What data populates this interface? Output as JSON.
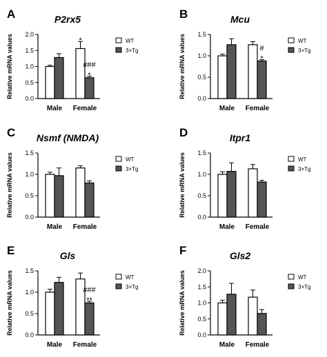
{
  "chart_data": [
    {
      "type": "bar",
      "panel_label": "A",
      "title": "P2rx5",
      "ylabel": "Relative mRNA values",
      "categories": [
        "Male",
        "Female"
      ],
      "ylim": [
        0,
        2.0
      ],
      "yticks": [
        "0.0",
        "0.5",
        "1.0",
        "1.5",
        "2.0"
      ],
      "series": [
        {
          "name": "WT",
          "values": [
            1.0,
            1.56
          ],
          "errors": [
            0.04,
            0.22
          ]
        },
        {
          "name": "3×Tg",
          "values": [
            1.28,
            0.65
          ],
          "errors": [
            0.12,
            0.05
          ]
        }
      ],
      "annotations": [
        {
          "category": 1,
          "series": 0,
          "lines": [
            "*"
          ]
        },
        {
          "category": 1,
          "series": 1,
          "lines": [
            "###",
            "*"
          ]
        }
      ]
    },
    {
      "type": "bar",
      "panel_label": "B",
      "title": "Mcu",
      "ylabel": "Relative mRNA values",
      "categories": [
        "Male",
        "Female"
      ],
      "ylim": [
        0,
        1.5
      ],
      "yticks": [
        "0.0",
        "0.5",
        "1.0",
        "1.5"
      ],
      "series": [
        {
          "name": "WT",
          "values": [
            1.0,
            1.26
          ],
          "errors": [
            0.04,
            0.07
          ]
        },
        {
          "name": "3×Tg",
          "values": [
            1.26,
            0.88
          ],
          "errors": [
            0.14,
            0.03
          ]
        }
      ],
      "annotations": [
        {
          "category": 1,
          "series": 1,
          "lines": [
            "#",
            "*"
          ]
        }
      ]
    },
    {
      "type": "bar",
      "panel_label": "C",
      "title": "Nsmf (NMDA)",
      "ylabel": "Relative mRNA values",
      "categories": [
        "Male",
        "Female"
      ],
      "ylim": [
        0,
        1.5
      ],
      "yticks": [
        "0.0",
        "0.5",
        "1.0",
        "1.5"
      ],
      "series": [
        {
          "name": "WT",
          "values": [
            1.0,
            1.15
          ],
          "errors": [
            0.05,
            0.05
          ]
        },
        {
          "name": "3×Tg",
          "values": [
            0.97,
            0.8
          ],
          "errors": [
            0.18,
            0.05
          ]
        }
      ],
      "annotations": []
    },
    {
      "type": "bar",
      "panel_label": "D",
      "title": "Itpr1",
      "ylabel": "Relative mRNA values",
      "categories": [
        "Male",
        "Female"
      ],
      "ylim": [
        0,
        1.5
      ],
      "yticks": [
        "0.0",
        "0.5",
        "1.0",
        "1.5"
      ],
      "series": [
        {
          "name": "WT",
          "values": [
            1.0,
            1.13
          ],
          "errors": [
            0.06,
            0.1
          ]
        },
        {
          "name": "3×Tg",
          "values": [
            1.07,
            0.82
          ],
          "errors": [
            0.2,
            0.04
          ]
        }
      ],
      "annotations": []
    },
    {
      "type": "bar",
      "panel_label": "E",
      "title": "Gls",
      "ylabel": "Relative mRNA values",
      "categories": [
        "Male",
        "Female"
      ],
      "ylim": [
        0,
        1.5
      ],
      "yticks": [
        "0.0",
        "0.5",
        "1.0",
        "1.5"
      ],
      "series": [
        {
          "name": "WT",
          "values": [
            1.0,
            1.31
          ],
          "errors": [
            0.07,
            0.14
          ]
        },
        {
          "name": "3×Tg",
          "values": [
            1.23,
            0.75
          ],
          "errors": [
            0.12,
            0.04
          ]
        }
      ],
      "annotations": [
        {
          "category": 1,
          "series": 1,
          "lines": [
            "###",
            "**"
          ]
        }
      ]
    },
    {
      "type": "bar",
      "panel_label": "F",
      "title": "Gls2",
      "ylabel": "Relative mRNA values",
      "categories": [
        "Male",
        "Female"
      ],
      "ylim": [
        0,
        2.0
      ],
      "yticks": [
        "0.0",
        "0.5",
        "1.0",
        "1.5",
        "2.0"
      ],
      "series": [
        {
          "name": "WT",
          "values": [
            1.0,
            1.18
          ],
          "errors": [
            0.08,
            0.22
          ]
        },
        {
          "name": "3×Tg",
          "values": [
            1.27,
            0.67
          ],
          "errors": [
            0.34,
            0.12
          ]
        }
      ],
      "annotations": []
    }
  ],
  "colors": {
    "wt_fill": "#ffffff",
    "tg_fill": "#555555",
    "stroke": "#000000"
  }
}
